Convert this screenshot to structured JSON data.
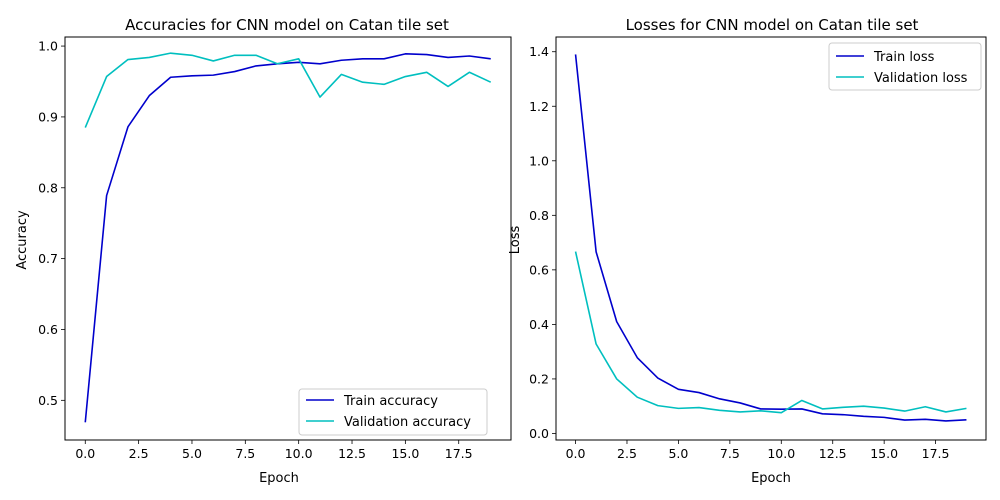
{
  "chart_data": [
    {
      "type": "line",
      "title": "Accuracies for CNN model on Catan tile set",
      "xlabel": "Epoch",
      "ylabel": "Accuracy",
      "xlim": [
        -0.95,
        19.95
      ],
      "ylim": [
        0.444,
        1.0128
      ],
      "xticks": [
        0.0,
        2.5,
        5.0,
        7.5,
        10.0,
        12.5,
        15.0,
        17.5
      ],
      "xtick_labels": [
        "0.0",
        "2.5",
        "5.0",
        "7.5",
        "10.0",
        "12.5",
        "15.0",
        "17.5"
      ],
      "yticks": [
        0.5,
        0.6,
        0.7,
        0.8,
        0.9,
        1.0
      ],
      "ytick_labels": [
        "0.5",
        "0.6",
        "0.7",
        "0.8",
        "0.9",
        "1.0"
      ],
      "grid": false,
      "legend_position": "lower-right",
      "x": [
        0,
        1,
        2,
        3,
        4,
        5,
        6,
        7,
        8,
        9,
        10,
        11,
        12,
        13,
        14,
        15,
        16,
        17,
        18,
        19
      ],
      "series": [
        {
          "name": "Train accuracy",
          "color": "#0000cc",
          "values": [
            0.469,
            0.789,
            0.886,
            0.93,
            0.956,
            0.958,
            0.959,
            0.964,
            0.972,
            0.975,
            0.977,
            0.975,
            0.98,
            0.982,
            0.982,
            0.989,
            0.988,
            0.984,
            0.986,
            0.982
          ]
        },
        {
          "name": "Validation accuracy",
          "color": "#00bfbf",
          "values": [
            0.885,
            0.957,
            0.981,
            0.984,
            0.99,
            0.987,
            0.979,
            0.987,
            0.987,
            0.975,
            0.982,
            0.928,
            0.96,
            0.949,
            0.946,
            0.957,
            0.963,
            0.943,
            0.963,
            0.949
          ]
        }
      ]
    },
    {
      "type": "line",
      "title": "Losses for CNN model on Catan tile set",
      "xlabel": "Epoch",
      "ylabel": "Loss",
      "xlim": [
        -0.95,
        19.95
      ],
      "ylim": [
        -0.024,
        1.454
      ],
      "xticks": [
        0.0,
        2.5,
        5.0,
        7.5,
        10.0,
        12.5,
        15.0,
        17.5
      ],
      "xtick_labels": [
        "0.0",
        "2.5",
        "5.0",
        "7.5",
        "10.0",
        "12.5",
        "15.0",
        "17.5"
      ],
      "yticks": [
        0.0,
        0.2,
        0.4,
        0.6,
        0.8,
        1.0,
        1.2,
        1.4
      ],
      "ytick_labels": [
        "0.0",
        "0.2",
        "0.4",
        "0.6",
        "0.8",
        "1.0",
        "1.2",
        "1.4"
      ],
      "grid": false,
      "legend_position": "upper-right",
      "x": [
        0,
        1,
        2,
        3,
        4,
        5,
        6,
        7,
        8,
        9,
        10,
        11,
        12,
        13,
        14,
        15,
        16,
        17,
        18,
        19
      ],
      "series": [
        {
          "name": "Train loss",
          "color": "#0000cc",
          "values": [
            1.39,
            0.666,
            0.41,
            0.278,
            0.203,
            0.162,
            0.15,
            0.127,
            0.112,
            0.09,
            0.089,
            0.09,
            0.072,
            0.069,
            0.063,
            0.059,
            0.049,
            0.052,
            0.046,
            0.05
          ]
        },
        {
          "name": "Validation loss",
          "color": "#00bfbf",
          "values": [
            0.667,
            0.328,
            0.2,
            0.133,
            0.102,
            0.092,
            0.095,
            0.085,
            0.079,
            0.083,
            0.076,
            0.121,
            0.09,
            0.096,
            0.1,
            0.093,
            0.082,
            0.098,
            0.079,
            0.092
          ]
        }
      ]
    }
  ]
}
